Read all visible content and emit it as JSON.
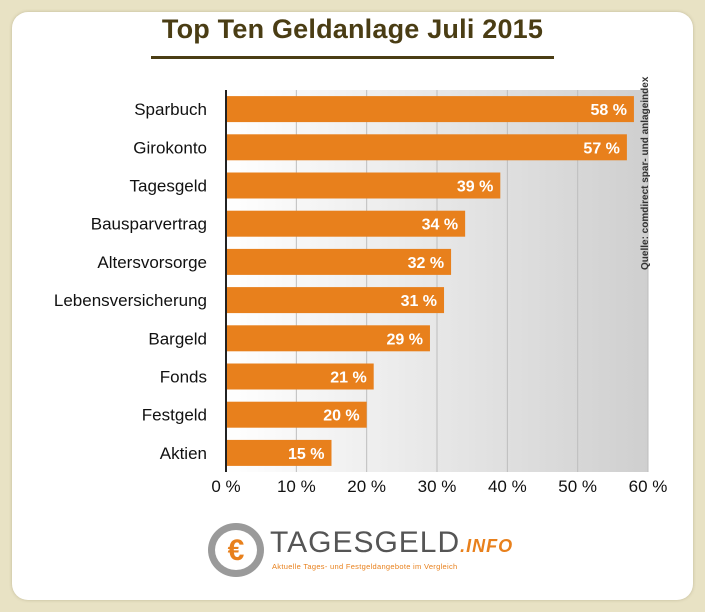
{
  "title": "Top Ten Geldanlage Juli 2015",
  "source": "Quelle: comdirect spar- und anlageindex",
  "logo": {
    "name": "TAGESGELD",
    "tld": ".INFO",
    "tagline": "Aktuelle Tages- und Festgeldangebote im Vergleich"
  },
  "colors": {
    "bar": "#e8801c",
    "title": "#4a3d14",
    "background": "#e8e2c4"
  },
  "chart_data": {
    "type": "bar",
    "orientation": "horizontal",
    "title": "Top Ten Geldanlage Juli 2015",
    "categories": [
      "Sparbuch",
      "Girokonto",
      "Tagesgeld",
      "Bausparvertrag",
      "Altersvorsorge",
      "Lebensversicherung",
      "Bargeld",
      "Fonds",
      "Festgeld",
      "Aktien"
    ],
    "values": [
      58,
      57,
      39,
      34,
      32,
      31,
      29,
      21,
      20,
      15
    ],
    "value_labels": [
      "58 %",
      "57 %",
      "39 %",
      "34 %",
      "32 %",
      "31 %",
      "29 %",
      "21 %",
      "20 %",
      "15 %"
    ],
    "x_ticks": [
      "0 %",
      "10 %",
      "20 %",
      "30 %",
      "40 %",
      "50 %",
      "60 %"
    ],
    "xlim": [
      0,
      60
    ],
    "grid": true
  }
}
